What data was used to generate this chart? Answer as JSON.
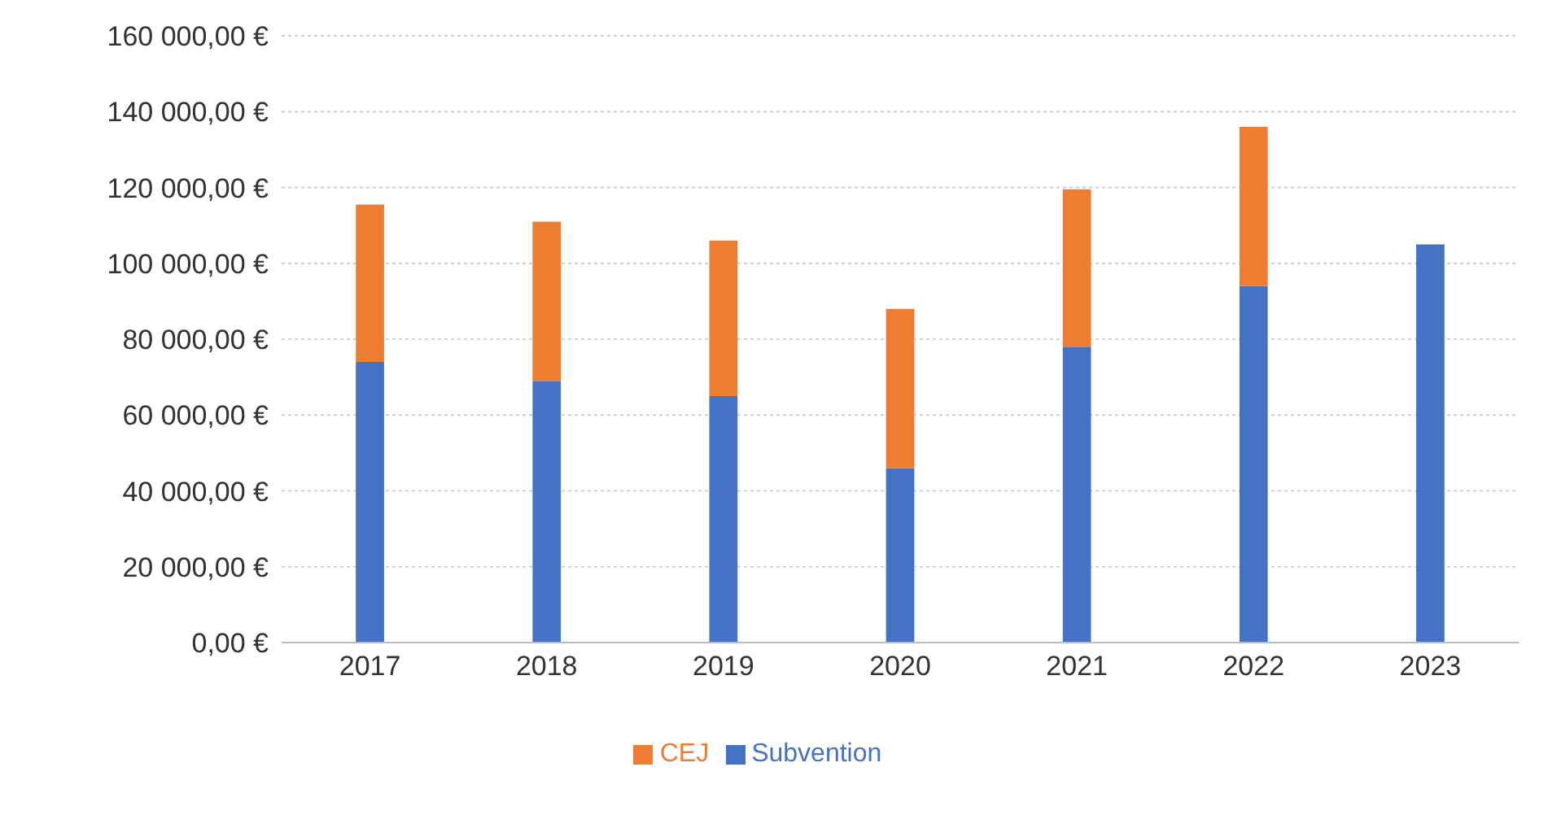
{
  "chart_data": {
    "type": "bar",
    "stacked": true,
    "categories": [
      "2017",
      "2018",
      "2019",
      "2020",
      "2021",
      "2022",
      "2023"
    ],
    "series": [
      {
        "name": "Subvention",
        "color": "#4472c4",
        "values": [
          74000,
          69000,
          65000,
          46000,
          78000,
          94000,
          105000
        ]
      },
      {
        "name": "CEJ",
        "color": "#ed7d31",
        "values": [
          41500,
          42000,
          41000,
          42000,
          41500,
          42000,
          null
        ]
      }
    ],
    "ylim": [
      0,
      160000
    ],
    "yticks": [
      {
        "value": 0,
        "label": "0,00 €"
      },
      {
        "value": 20000,
        "label": "20 000,00 €"
      },
      {
        "value": 40000,
        "label": "40 000,00 €"
      },
      {
        "value": 60000,
        "label": "60 000,00 €"
      },
      {
        "value": 80000,
        "label": "80 000,00 €"
      },
      {
        "value": 100000,
        "label": "100 000,00 €"
      },
      {
        "value": 120000,
        "label": "120 000,00 €"
      },
      {
        "value": 140000,
        "label": "140 000,00 €"
      },
      {
        "value": 160000,
        "label": "160 000,00 €"
      }
    ],
    "grid": "y",
    "legend": "bottom"
  }
}
